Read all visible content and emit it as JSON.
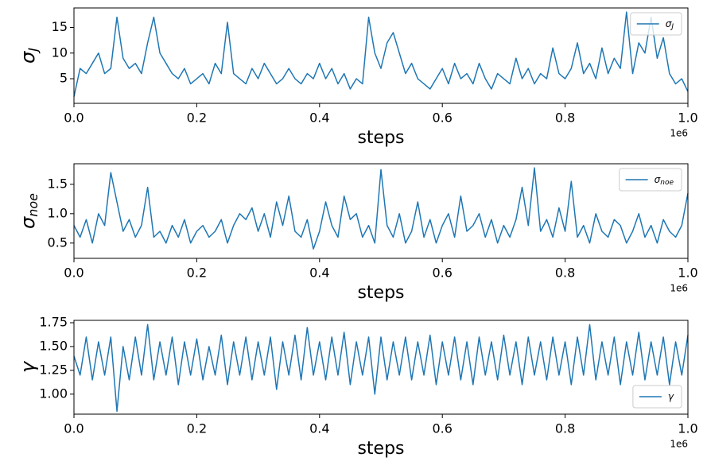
{
  "chart_data": [
    {
      "type": "line",
      "xlabel": "steps",
      "x_offset_label": "1e6",
      "ylabel": "σ",
      "ylabel_sub": "J",
      "xlim": [
        0,
        1000000
      ],
      "xticks": [
        {
          "value": 0,
          "label": "0.0"
        },
        {
          "value": 200000,
          "label": "0.2"
        },
        {
          "value": 400000,
          "label": "0.4"
        },
        {
          "value": 600000,
          "label": "0.6"
        },
        {
          "value": 800000,
          "label": "0.8"
        },
        {
          "value": 1000000,
          "label": "1.0"
        }
      ],
      "ylim": [
        0.2,
        18.8
      ],
      "yticks": [
        5,
        10,
        15
      ],
      "legend": "upper right",
      "x": [
        0,
        10000,
        20000,
        30000,
        40000,
        50000,
        60000,
        70000,
        80000,
        90000,
        100000,
        110000,
        120000,
        130000,
        140000,
        150000,
        160000,
        170000,
        180000,
        190000,
        200000,
        210000,
        220000,
        230000,
        240000,
        250000,
        260000,
        270000,
        280000,
        290000,
        300000,
        310000,
        320000,
        330000,
        340000,
        350000,
        360000,
        370000,
        380000,
        390000,
        400000,
        410000,
        420000,
        430000,
        440000,
        450000,
        460000,
        470000,
        480000,
        490000,
        500000,
        510000,
        520000,
        530000,
        540000,
        550000,
        560000,
        570000,
        580000,
        590000,
        600000,
        610000,
        620000,
        630000,
        640000,
        650000,
        660000,
        670000,
        680000,
        690000,
        700000,
        710000,
        720000,
        730000,
        740000,
        750000,
        760000,
        770000,
        780000,
        790000,
        800000,
        810000,
        820000,
        830000,
        840000,
        850000,
        860000,
        870000,
        880000,
        890000,
        900000,
        910000,
        920000,
        930000,
        940000,
        950000,
        960000,
        970000,
        980000,
        990000,
        1000000
      ],
      "series": [
        {
          "name": "σ",
          "name_sub": "J",
          "color": "#1f77b4",
          "values": [
            1.5,
            7,
            6,
            8,
            10,
            6,
            7,
            17,
            9,
            7,
            8,
            6,
            12,
            17,
            10,
            8,
            6,
            5,
            7,
            4,
            5,
            6,
            4,
            8,
            6,
            16,
            6,
            5,
            4,
            7,
            5,
            8,
            6,
            4,
            5,
            7,
            5,
            4,
            6,
            5,
            8,
            5,
            7,
            4,
            6,
            3,
            5,
            4,
            17,
            10,
            7,
            12,
            14,
            10,
            6,
            8,
            5,
            4,
            3,
            5,
            7,
            4,
            8,
            5,
            6,
            4,
            8,
            5,
            3,
            6,
            5,
            4,
            9,
            5,
            7,
            4,
            6,
            5,
            11,
            6,
            5,
            7,
            12,
            6,
            8,
            5,
            11,
            6,
            9,
            7,
            18,
            6,
            12,
            10,
            17,
            9,
            13,
            6,
            4,
            5,
            2.5
          ]
        }
      ]
    },
    {
      "type": "line",
      "xlabel": "steps",
      "x_offset_label": "1e6",
      "ylabel": "σ",
      "ylabel_sub": "noe",
      "xlim": [
        0,
        1000000
      ],
      "xticks": [
        {
          "value": 0,
          "label": "0.0"
        },
        {
          "value": 200000,
          "label": "0.2"
        },
        {
          "value": 400000,
          "label": "0.4"
        },
        {
          "value": 600000,
          "label": "0.6"
        },
        {
          "value": 800000,
          "label": "0.8"
        },
        {
          "value": 1000000,
          "label": "1.0"
        }
      ],
      "ylim": [
        0.24,
        1.85
      ],
      "yticks": [
        {
          "value": 0.5,
          "label": "0.5"
        },
        {
          "value": 1,
          "label": "1.0"
        },
        {
          "value": 1.5,
          "label": "1.5"
        }
      ],
      "legend": "upper right",
      "x": [
        0,
        10000,
        20000,
        30000,
        40000,
        50000,
        60000,
        70000,
        80000,
        90000,
        100000,
        110000,
        120000,
        130000,
        140000,
        150000,
        160000,
        170000,
        180000,
        190000,
        200000,
        210000,
        220000,
        230000,
        240000,
        250000,
        260000,
        270000,
        280000,
        290000,
        300000,
        310000,
        320000,
        330000,
        340000,
        350000,
        360000,
        370000,
        380000,
        390000,
        400000,
        410000,
        420000,
        430000,
        440000,
        450000,
        460000,
        470000,
        480000,
        490000,
        500000,
        510000,
        520000,
        530000,
        540000,
        550000,
        560000,
        570000,
        580000,
        590000,
        600000,
        610000,
        620000,
        630000,
        640000,
        650000,
        660000,
        670000,
        680000,
        690000,
        700000,
        710000,
        720000,
        730000,
        740000,
        750000,
        760000,
        770000,
        780000,
        790000,
        800000,
        810000,
        820000,
        830000,
        840000,
        850000,
        860000,
        870000,
        880000,
        890000,
        900000,
        910000,
        920000,
        930000,
        940000,
        950000,
        960000,
        970000,
        980000,
        990000,
        1000000
      ],
      "series": [
        {
          "name": "σ",
          "name_sub": "noe",
          "color": "#1f77b4",
          "values": [
            0.8,
            0.6,
            0.9,
            0.5,
            1.0,
            0.8,
            1.7,
            1.2,
            0.7,
            0.9,
            0.6,
            0.8,
            1.45,
            0.6,
            0.7,
            0.5,
            0.8,
            0.6,
            0.9,
            0.5,
            0.7,
            0.8,
            0.6,
            0.7,
            0.9,
            0.5,
            0.8,
            1.0,
            0.9,
            1.1,
            0.7,
            1.0,
            0.6,
            1.2,
            0.8,
            1.3,
            0.7,
            0.6,
            0.9,
            0.4,
            0.7,
            1.2,
            0.8,
            0.6,
            1.3,
            0.9,
            1.0,
            0.6,
            0.8,
            0.5,
            1.75,
            0.8,
            0.6,
            1.0,
            0.5,
            0.7,
            1.2,
            0.6,
            0.9,
            0.5,
            0.8,
            1.0,
            0.6,
            1.3,
            0.7,
            0.8,
            1.0,
            0.6,
            0.9,
            0.5,
            0.8,
            0.6,
            0.9,
            1.45,
            0.8,
            1.78,
            0.7,
            0.9,
            0.6,
            1.1,
            0.7,
            1.55,
            0.6,
            0.8,
            0.5,
            1.0,
            0.7,
            0.6,
            0.9,
            0.8,
            0.5,
            0.7,
            1.0,
            0.6,
            0.8,
            0.5,
            0.9,
            0.7,
            0.6,
            0.8,
            1.35
          ]
        }
      ]
    },
    {
      "type": "line",
      "xlabel": "steps",
      "x_offset_label": "1e6",
      "ylabel": "γ",
      "xlim": [
        0,
        1000000
      ],
      "xticks": [
        {
          "value": 0,
          "label": "0.0"
        },
        {
          "value": 200000,
          "label": "0.2"
        },
        {
          "value": 400000,
          "label": "0.4"
        },
        {
          "value": 600000,
          "label": "0.6"
        },
        {
          "value": 800000,
          "label": "0.8"
        },
        {
          "value": 1000000,
          "label": "1.0"
        }
      ],
      "ylim": [
        0.79,
        1.775
      ],
      "yticks": [
        {
          "value": 1,
          "label": "1.00"
        },
        {
          "value": 1.25,
          "label": "1.25"
        },
        {
          "value": 1.5,
          "label": "1.50"
        },
        {
          "value": 1.75,
          "label": "1.75"
        }
      ],
      "legend": "lower right",
      "x": [
        0,
        10000,
        20000,
        30000,
        40000,
        50000,
        60000,
        70000,
        80000,
        90000,
        100000,
        110000,
        120000,
        130000,
        140000,
        150000,
        160000,
        170000,
        180000,
        190000,
        200000,
        210000,
        220000,
        230000,
        240000,
        250000,
        260000,
        270000,
        280000,
        290000,
        300000,
        310000,
        320000,
        330000,
        340000,
        350000,
        360000,
        370000,
        380000,
        390000,
        400000,
        410000,
        420000,
        430000,
        440000,
        450000,
        460000,
        470000,
        480000,
        490000,
        500000,
        510000,
        520000,
        530000,
        540000,
        550000,
        560000,
        570000,
        580000,
        590000,
        600000,
        610000,
        620000,
        630000,
        640000,
        650000,
        660000,
        670000,
        680000,
        690000,
        700000,
        710000,
        720000,
        730000,
        740000,
        750000,
        760000,
        770000,
        780000,
        790000,
        800000,
        810000,
        820000,
        830000,
        840000,
        850000,
        860000,
        870000,
        880000,
        890000,
        900000,
        910000,
        920000,
        930000,
        940000,
        950000,
        960000,
        970000,
        980000,
        990000,
        1000000
      ],
      "series": [
        {
          "name": "γ",
          "color": "#1f77b4",
          "values": [
            1.4,
            1.2,
            1.6,
            1.15,
            1.55,
            1.2,
            1.6,
            0.82,
            1.5,
            1.15,
            1.6,
            1.2,
            1.73,
            1.15,
            1.55,
            1.2,
            1.6,
            1.1,
            1.55,
            1.2,
            1.58,
            1.15,
            1.5,
            1.2,
            1.62,
            1.1,
            1.55,
            1.2,
            1.6,
            1.15,
            1.55,
            1.2,
            1.6,
            1.05,
            1.55,
            1.2,
            1.62,
            1.15,
            1.7,
            1.2,
            1.55,
            1.15,
            1.6,
            1.2,
            1.65,
            1.1,
            1.55,
            1.2,
            1.6,
            1.0,
            1.6,
            1.15,
            1.55,
            1.2,
            1.6,
            1.15,
            1.55,
            1.2,
            1.62,
            1.1,
            1.55,
            1.2,
            1.6,
            1.15,
            1.55,
            1.1,
            1.6,
            1.2,
            1.55,
            1.15,
            1.62,
            1.2,
            1.55,
            1.1,
            1.6,
            1.2,
            1.55,
            1.15,
            1.6,
            1.2,
            1.55,
            1.1,
            1.6,
            1.2,
            1.73,
            1.15,
            1.55,
            1.2,
            1.6,
            1.1,
            1.55,
            1.2,
            1.65,
            1.15,
            1.55,
            1.2,
            1.6,
            1.1,
            1.55,
            1.2,
            1.62
          ]
        }
      ]
    }
  ]
}
